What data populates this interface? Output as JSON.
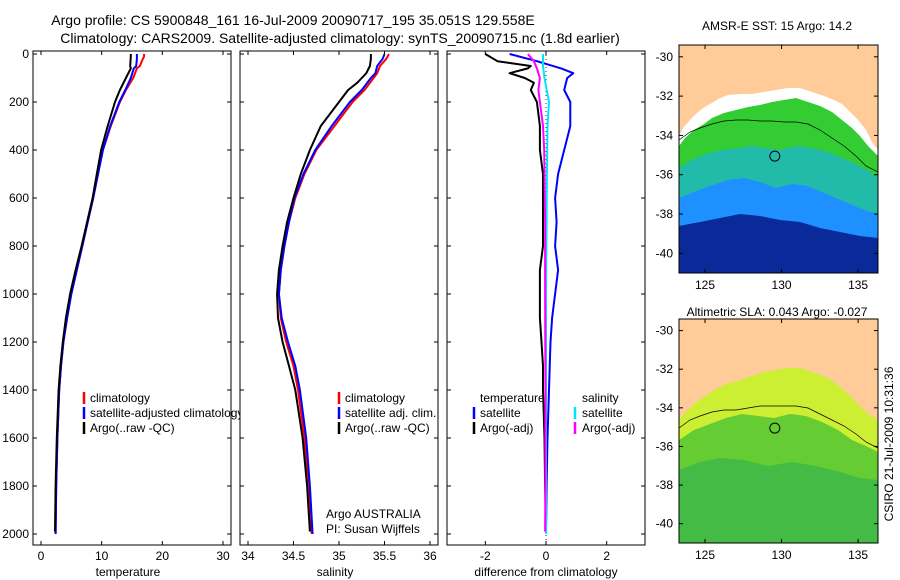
{
  "header": {
    "line1": "Argo profile: CS 5900848_161 16-Jul-2009 20090717_195 35.051S 129.558E",
    "line2": "Climatology: CARS2009. Satellite-adjusted climatology: synTS_20090715.nc (1.8d earlier)"
  },
  "side_label": "CSIRO 21-Jul-2009 10:31:36",
  "colors": {
    "climatology": "#ff0000",
    "satellite": "#0000ff",
    "argo": "#000000",
    "sal_satellite": "#00e5ff",
    "sal_argo": "#ff00ff"
  },
  "chart_data": [
    {
      "type": "line",
      "xlabel": "temperature",
      "xlim": [
        0,
        30
      ],
      "xticks": [
        0,
        10,
        20,
        30
      ],
      "ylim": [
        2000,
        0
      ],
      "yticks": [
        0,
        200,
        400,
        600,
        800,
        1000,
        1200,
        1400,
        1600,
        1800,
        2000
      ],
      "legend": [
        "climatology",
        "satellite-adjusted climatology",
        "Argo(..raw -QC)"
      ],
      "series": [
        {
          "name": "climatology",
          "color": "#ff0000",
          "depth": [
            0,
            10,
            20,
            50,
            60,
            100,
            150,
            200,
            300,
            400,
            500,
            600,
            700,
            800,
            900,
            1000,
            1100,
            1200,
            1300,
            1400,
            1600,
            1800,
            2000
          ],
          "values": [
            17.0,
            17.0,
            16.8,
            16.3,
            15.8,
            15.2,
            14.0,
            13.0,
            11.5,
            10.2,
            9.4,
            8.6,
            7.7,
            6.8,
            5.9,
            5.0,
            4.3,
            3.7,
            3.3,
            3.0,
            2.7,
            2.5,
            2.4
          ]
        },
        {
          "name": "satellite-adjusted climatology",
          "color": "#0000ff",
          "depth": [
            0,
            20,
            50,
            60,
            100,
            150,
            200,
            300,
            400,
            500,
            600,
            700,
            800,
            900,
            1000,
            1100,
            1200,
            1300,
            1400,
            1600,
            1800,
            2000
          ],
          "values": [
            15.8,
            15.8,
            15.7,
            15.3,
            14.8,
            13.9,
            12.9,
            11.4,
            10.2,
            9.4,
            8.6,
            7.7,
            6.8,
            5.9,
            5.0,
            4.3,
            3.7,
            3.3,
            3.0,
            2.7,
            2.5,
            2.4
          ]
        },
        {
          "name": "Argo(..raw -QC)",
          "color": "#000000",
          "depth": [
            0,
            10,
            50,
            60,
            100,
            150,
            200,
            300,
            400,
            500,
            600,
            700,
            800,
            900,
            1000,
            1100,
            1200,
            1300,
            1400,
            1600,
            1800,
            1990
          ],
          "values": [
            14.8,
            14.8,
            14.7,
            14.8,
            14.0,
            13.0,
            12.2,
            11.0,
            9.9,
            9.2,
            8.5,
            7.6,
            6.7,
            5.7,
            4.8,
            4.1,
            3.6,
            3.2,
            2.9,
            2.6,
            2.4,
            2.3
          ]
        }
      ]
    },
    {
      "type": "line",
      "xlabel": "salinity",
      "xlim": [
        34,
        36
      ],
      "xticks": [
        34,
        34.5,
        35,
        35.5,
        36
      ],
      "ylim": [
        2000,
        0
      ],
      "legend": [
        "climatology",
        "satellite adj. clim.",
        "Argo(..raw -QC)"
      ],
      "annotation": [
        "Argo AUSTRALIA",
        "PI: Susan Wijffels"
      ],
      "series": [
        {
          "name": "climatology",
          "color": "#ff0000",
          "depth": [
            0,
            20,
            50,
            80,
            100,
            150,
            200,
            250,
            300,
            400,
            500,
            600,
            700,
            800,
            900,
            1000,
            1100,
            1200,
            1300,
            1400,
            1600,
            1800,
            2000
          ],
          "values": [
            35.55,
            35.52,
            35.45,
            35.42,
            35.38,
            35.28,
            35.15,
            35.05,
            34.95,
            34.75,
            34.62,
            34.52,
            34.45,
            34.4,
            34.36,
            34.34,
            34.36,
            34.42,
            34.5,
            34.55,
            34.62,
            34.67,
            34.7
          ]
        },
        {
          "name": "satellite adj. clim.",
          "color": "#0000ff",
          "depth": [
            0,
            20,
            50,
            80,
            100,
            150,
            200,
            250,
            300,
            400,
            500,
            600,
            700,
            800,
            900,
            1000,
            1100,
            1200,
            1300,
            1400,
            1600,
            1800,
            2000
          ],
          "values": [
            35.5,
            35.48,
            35.42,
            35.4,
            35.35,
            35.25,
            35.12,
            35.02,
            34.92,
            34.74,
            34.61,
            34.51,
            34.45,
            34.4,
            34.36,
            34.34,
            34.37,
            34.44,
            34.52,
            34.57,
            34.64,
            34.68,
            34.71
          ]
        },
        {
          "name": "Argo(..raw -QC)",
          "color": "#000000",
          "depth": [
            0,
            20,
            50,
            80,
            100,
            120,
            150,
            200,
            250,
            300,
            400,
            500,
            600,
            700,
            800,
            900,
            1000,
            1100,
            1200,
            1300,
            1400,
            1600,
            1800,
            1990
          ],
          "values": [
            35.35,
            35.35,
            35.34,
            35.3,
            35.25,
            35.2,
            35.1,
            35.0,
            34.9,
            34.8,
            34.68,
            34.58,
            34.5,
            34.43,
            34.38,
            34.34,
            34.32,
            34.33,
            34.38,
            34.45,
            34.52,
            34.6,
            34.65,
            34.68
          ]
        }
      ]
    },
    {
      "type": "line",
      "xlabel": "difference from climatology",
      "xlim": [
        -3,
        3
      ],
      "xticks": [
        -2,
        0,
        2
      ],
      "ylim": [
        2000,
        0
      ],
      "legend_temperature_title": "temperature",
      "legend_temperature": [
        "satellite",
        "Argo(-adj)"
      ],
      "legend_salinity_title": "salinity",
      "legend_salinity": [
        "satellite",
        "Argo(-adj)"
      ],
      "series": [
        {
          "name": "temperature satellite",
          "color": "#0000ff",
          "depth": [
            0,
            30,
            60,
            80,
            100,
            150,
            200,
            300,
            400,
            500,
            600,
            700,
            800,
            900,
            1000,
            1100,
            1200,
            1400,
            1600,
            1800,
            2000
          ],
          "values": [
            -1.2,
            -0.3,
            0.5,
            0.9,
            0.7,
            0.6,
            0.8,
            0.8,
            0.6,
            0.4,
            0.3,
            0.35,
            0.3,
            0.4,
            0.3,
            0.2,
            0.15,
            0.1,
            0.05,
            0.02,
            0.0
          ]
        },
        {
          "name": "temperature Argo(-adj)",
          "color": "#000000",
          "depth": [
            0,
            30,
            50,
            60,
            80,
            100,
            120,
            150,
            200,
            300,
            400,
            500,
            600,
            700,
            800,
            900,
            1000,
            1100,
            1200,
            1300,
            1400,
            1600,
            1800,
            1990
          ],
          "values": [
            -2.0,
            -1.6,
            -0.5,
            -0.6,
            -1.2,
            -0.7,
            -0.4,
            -0.5,
            -0.3,
            -0.2,
            -0.2,
            -0.1,
            -0.1,
            -0.1,
            -0.1,
            -0.2,
            -0.2,
            -0.2,
            -0.15,
            -0.1,
            -0.1,
            -0.05,
            -0.03,
            0.0
          ]
        },
        {
          "name": "salinity satellite",
          "color": "#00e5ff",
          "depth": [
            0,
            50,
            100,
            200,
            300,
            500,
            700,
            1000,
            1400,
            1800,
            2000
          ],
          "values": [
            -0.1,
            -0.1,
            -0.05,
            0.1,
            0.05,
            0.03,
            0.02,
            0.0,
            0.0,
            0.0,
            0.0
          ]
        },
        {
          "name": "salinity Argo(-adj)",
          "color": "#ff00ff",
          "depth": [
            0,
            30,
            60,
            100,
            150,
            200,
            300,
            400,
            500,
            700,
            1000,
            1400,
            1800,
            1990
          ],
          "values": [
            -0.6,
            -0.4,
            -0.3,
            -0.2,
            -0.25,
            -0.2,
            -0.1,
            -0.06,
            -0.05,
            -0.03,
            -0.03,
            -0.02,
            -0.02,
            -0.03
          ]
        }
      ]
    },
    {
      "type": "heatmap",
      "title": "AMSR-E SST: 15 Argo: 14.2",
      "xticks": [
        125,
        130,
        135
      ],
      "yticks": [
        -30,
        -32,
        -34,
        -36,
        -38,
        -40
      ],
      "marker": {
        "lon": 129.558,
        "lat": -35.051
      }
    },
    {
      "type": "heatmap",
      "title": "Altimetric SLA: 0.043 Argo: -0.027",
      "xticks": [
        125,
        130,
        135
      ],
      "yticks": [
        -30,
        -32,
        -34,
        -36,
        -38,
        -40
      ],
      "marker": {
        "lon": 129.558,
        "lat": -35.051
      }
    }
  ]
}
